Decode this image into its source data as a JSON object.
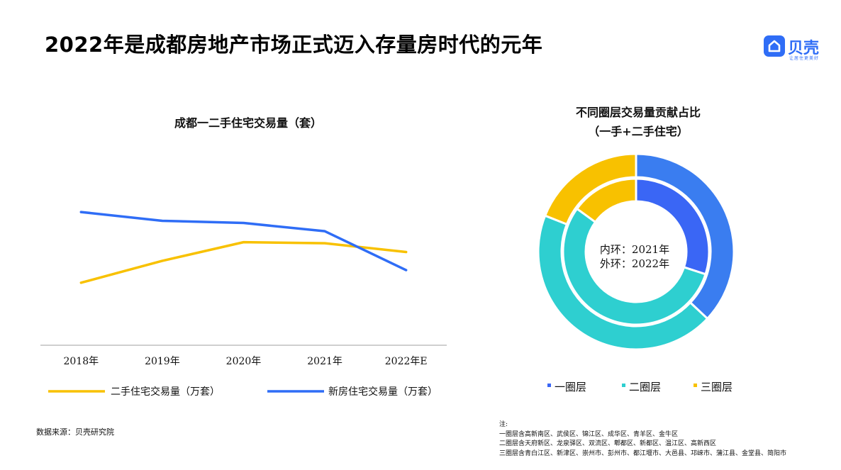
{
  "page": {
    "title": "2022年是成都房地产市场正式迈入存量房时代的元年",
    "logo_text": "贝壳",
    "logo_slogan": "让居住更美好",
    "source": "数据来源：贝壳研究院"
  },
  "notes": {
    "heading": "注:",
    "lines": [
      "一圈层含高新南区、武侯区、锦江区、成华区、青羊区、金牛区",
      "二圈层含天府新区、龙泉驿区、双流区、郫都区、新都区、温江区、高新西区",
      "三圈层含青白江区、新津区、崇州市、彭州市、都江堰市、大邑县、邛崃市、蒲江县、金堂县、简阳市"
    ]
  },
  "colors": {
    "blue": "#2f6df6",
    "yellow": "#f8c100",
    "teal": "#2ecfd0",
    "ring1_inner": "#3a66f5",
    "ring1_outer": "#3a7df0"
  },
  "chart_data": [
    {
      "type": "line",
      "title": "成都一二手住宅交易量（套）",
      "categories": [
        "2018年",
        "2019年",
        "2020年",
        "2021年",
        "2022年E"
      ],
      "ylim": [
        0,
        30
      ],
      "yaxis_visible": false,
      "series": [
        {
          "name": "二手住宅交易量（万套）",
          "color": "#f8c100",
          "values": [
            11.4,
            15.4,
            18.8,
            18.6,
            17.0
          ]
        },
        {
          "name": "新房住宅交易量（万套）",
          "color": "#2f6df6",
          "values": [
            24.3,
            22.7,
            22.3,
            20.8,
            13.7
          ]
        }
      ],
      "legend_position": "bottom"
    },
    {
      "type": "pie",
      "subtype": "double-donut",
      "title_lines": [
        "不同圈层交易量贡献占比",
        "（一手+二手住宅）"
      ],
      "center_labels": [
        "内环：2021年",
        "外环：2022年"
      ],
      "categories": [
        "一圈层",
        "二圈层",
        "三圈层"
      ],
      "colors": [
        "#3a66f5",
        "#2ecfd0",
        "#f8c100"
      ],
      "series": [
        {
          "name": "2021年",
          "ring": "inner",
          "values": [
            30,
            55,
            15
          ]
        },
        {
          "name": "2022年",
          "ring": "outer",
          "values": [
            37,
            44,
            19
          ]
        }
      ],
      "legend_position": "bottom"
    }
  ]
}
